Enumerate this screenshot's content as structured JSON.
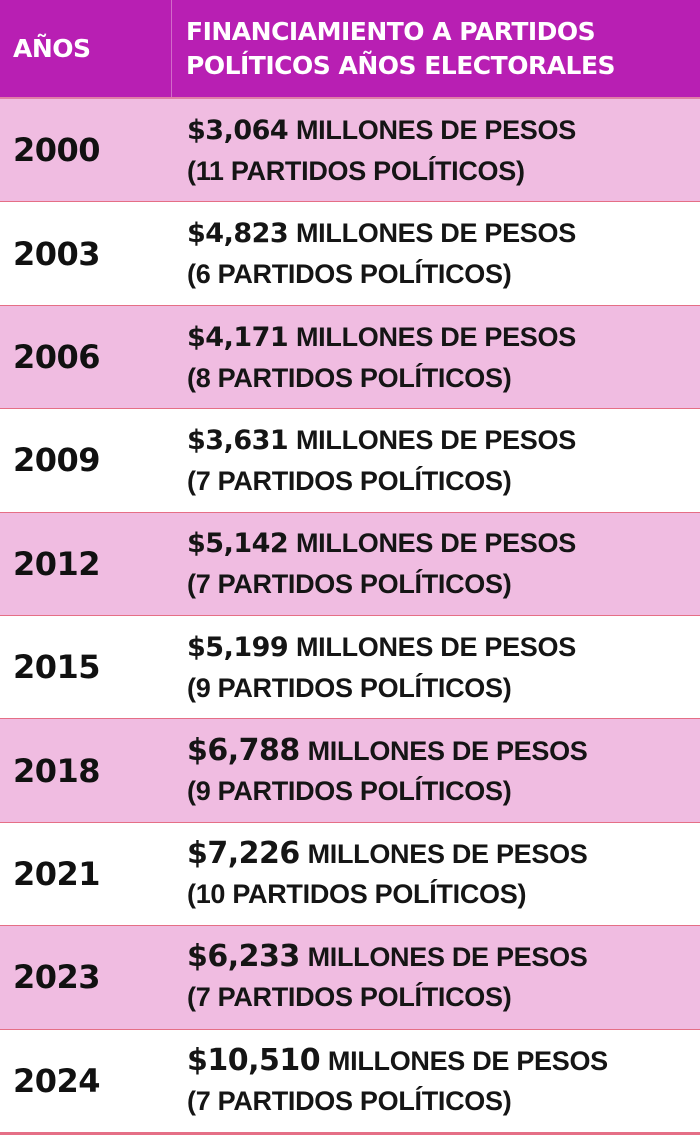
{
  "header": {
    "year_label": "AÑOS",
    "title_line1": "FINANCIAMIENTO A PARTIDOS",
    "title_line2": "POLÍTICOS AÑOS ELECTORALES"
  },
  "colors": {
    "header_bg": "#b81fb3",
    "row_pink": "#f0bce1",
    "row_white": "#ffffff",
    "divider": "#e56f86"
  },
  "rows": [
    {
      "year": "2000",
      "amount": "$3,064",
      "unit": "MILLONES DE PESOS",
      "parties": "(11 PARTIDOS POLÍTICOS)"
    },
    {
      "year": "2003",
      "amount": "$4,823",
      "unit": "MILLONES DE PESOS",
      "parties": "(6 PARTIDOS POLÍTICOS)"
    },
    {
      "year": "2006",
      "amount": "$4,171",
      "unit": "MILLONES DE PESOS",
      "parties": "(8 PARTIDOS POLÍTICOS)"
    },
    {
      "year": "2009",
      "amount": "$3,631",
      "unit": "MILLONES DE PESOS",
      "parties": "(7 PARTIDOS POLÍTICOS)"
    },
    {
      "year": "2012",
      "amount": "$5,142",
      "unit": "MILLONES DE PESOS",
      "parties": "(7 PARTIDOS POLÍTICOS)"
    },
    {
      "year": "2015",
      "amount": "$5,199",
      "unit": "MILLONES DE PESOS",
      "parties": "(9 PARTIDOS POLÍTICOS)"
    },
    {
      "year": "2018",
      "amount": "$6,788",
      "unit": "MILLONES DE PESOS",
      "parties": "(9 PARTIDOS POLÍTICOS)"
    },
    {
      "year": "2021",
      "amount": "$7,226",
      "unit": "MILLONES DE PESOS",
      "parties": "(10 PARTIDOS POLÍTICOS)"
    },
    {
      "year": "2023",
      "amount": "$6,233",
      "unit": "MILLONES DE PESOS",
      "parties": "(7 PARTIDOS POLÍTICOS)"
    },
    {
      "year": "2024",
      "amount": "$10,510",
      "unit": "MILLONES DE PESOS",
      "parties": "(7 PARTIDOS POLÍTICOS)"
    }
  ]
}
